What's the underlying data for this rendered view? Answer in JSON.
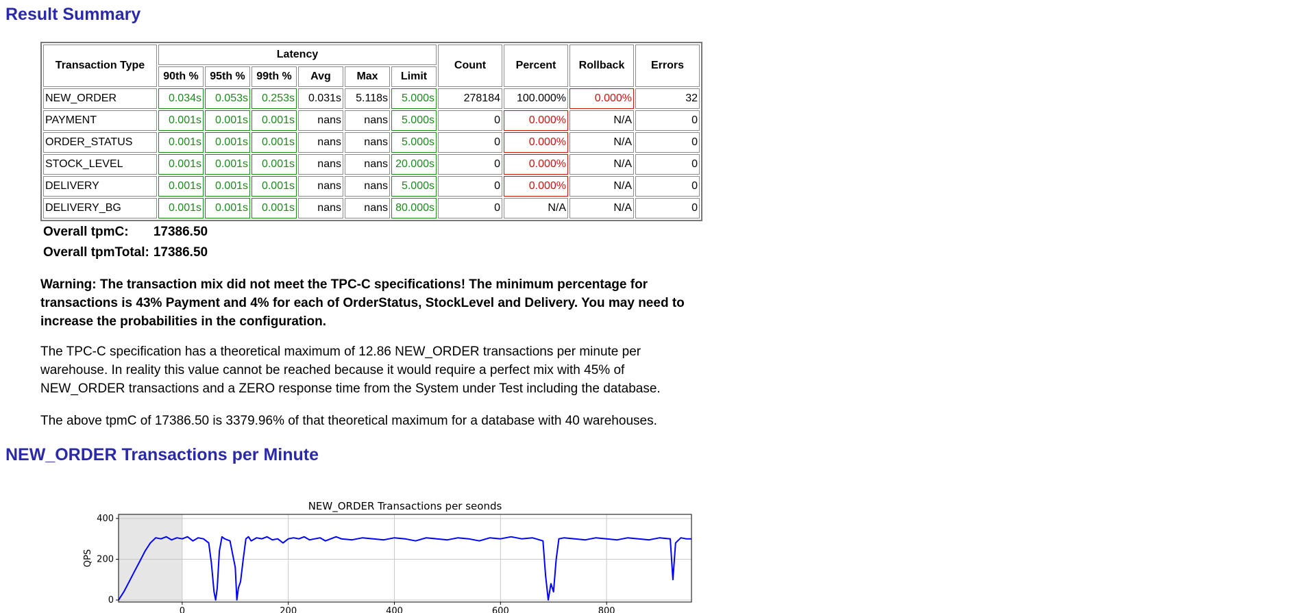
{
  "headings": {
    "summary": "Result Summary",
    "new_order": "NEW_ORDER Transactions per Minute"
  },
  "table": {
    "col_transaction_type": "Transaction Type",
    "col_latency": "Latency",
    "latency_cols": [
      "90th %",
      "95th %",
      "99th %",
      "Avg",
      "Max",
      "Limit"
    ],
    "col_count": "Count",
    "col_percent": "Percent",
    "col_rollback": "Rollback",
    "col_errors": "Errors",
    "rows": [
      {
        "name": "NEW_ORDER",
        "p90": "0.034s",
        "p95": "0.053s",
        "p99": "0.253s",
        "avg": "0.031s",
        "max": "5.118s",
        "limit": "5.000s",
        "count": "278184",
        "percent": "100.000%",
        "rollback": "0.000%",
        "errors": "32"
      },
      {
        "name": "PAYMENT",
        "p90": "0.001s",
        "p95": "0.001s",
        "p99": "0.001s",
        "avg": "nans",
        "max": "nans",
        "limit": "5.000s",
        "count": "0",
        "percent": "0.000%",
        "rollback": "N/A",
        "errors": "0"
      },
      {
        "name": "ORDER_STATUS",
        "p90": "0.001s",
        "p95": "0.001s",
        "p99": "0.001s",
        "avg": "nans",
        "max": "nans",
        "limit": "5.000s",
        "count": "0",
        "percent": "0.000%",
        "rollback": "N/A",
        "errors": "0"
      },
      {
        "name": "STOCK_LEVEL",
        "p90": "0.001s",
        "p95": "0.001s",
        "p99": "0.001s",
        "avg": "nans",
        "max": "nans",
        "limit": "20.000s",
        "count": "0",
        "percent": "0.000%",
        "rollback": "N/A",
        "errors": "0"
      },
      {
        "name": "DELIVERY",
        "p90": "0.001s",
        "p95": "0.001s",
        "p99": "0.001s",
        "avg": "nans",
        "max": "nans",
        "limit": "5.000s",
        "count": "0",
        "percent": "0.000%",
        "rollback": "N/A",
        "errors": "0"
      },
      {
        "name": "DELIVERY_BG",
        "p90": "0.001s",
        "p95": "0.001s",
        "p99": "0.001s",
        "avg": "nans",
        "max": "nans",
        "limit": "80.000s",
        "count": "0",
        "percent": "N/A",
        "rollback": "N/A",
        "errors": "0"
      }
    ]
  },
  "totals": {
    "tpmc_label": "Overall tpmC:",
    "tpmc_value": "17386.50",
    "tpmtotal_label": "Overall tpmTotal:",
    "tpmtotal_value": "17386.50"
  },
  "warning": "Warning: The transaction mix did not meet the TPC-C specifications! The minimum percentage for transactions is 43% Payment and 4% for each of OrderStatus, StockLevel and Delivery. You may need to increase the probabilities in the configuration.",
  "spec_text": "The TPC-C specification has a theoretical maximum of 12.86 NEW_ORDER transactions per minute per warehouse. In reality this value cannot be reached because it would require a perfect mix with 45% of NEW_ORDER transactions and a ZERO response time from the System under Test including the database.",
  "ratio_text": "The above tpmC of 17386.50 is 3379.96% of that theoretical maximum for a database with 40 warehouses.",
  "colors": {
    "heading": "#2a2aa8",
    "ok": "#1a8a1a",
    "bad": "#cc1111",
    "series": "#0000ff",
    "rampup_shade": "#e6e6e6"
  },
  "chart_data": {
    "type": "line",
    "title": "NEW_ORDER Transactions per seonds",
    "xlabel": "",
    "ylabel": "QPS",
    "xlim": [
      -120,
      960
    ],
    "ylim": [
      -10,
      420
    ],
    "xticks": [
      0,
      200,
      400,
      600,
      800
    ],
    "yticks": [
      0,
      200,
      400
    ],
    "grid": true,
    "shaded_region": [
      -120,
      0
    ],
    "series": [
      {
        "name": "",
        "x": [
          -120,
          -110,
          -100,
          -90,
          -80,
          -70,
          -60,
          -50,
          -40,
          -30,
          -20,
          -10,
          0,
          10,
          20,
          30,
          40,
          50,
          55,
          60,
          63,
          66,
          70,
          75,
          80,
          90,
          100,
          103,
          106,
          110,
          115,
          120,
          125,
          130,
          140,
          150,
          160,
          170,
          180,
          190,
          200,
          210,
          220,
          230,
          240,
          250,
          260,
          270,
          280,
          290,
          300,
          320,
          340,
          360,
          380,
          400,
          420,
          440,
          460,
          480,
          500,
          520,
          540,
          560,
          580,
          600,
          620,
          640,
          660,
          680,
          685,
          690,
          695,
          700,
          705,
          710,
          720,
          740,
          760,
          780,
          800,
          820,
          840,
          860,
          880,
          900,
          920,
          925,
          930,
          940,
          950,
          960
        ],
        "y": [
          0,
          40,
          90,
          140,
          190,
          240,
          280,
          305,
          300,
          310,
          295,
          305,
          300,
          310,
          290,
          305,
          300,
          280,
          180,
          40,
          0,
          60,
          240,
          310,
          300,
          290,
          160,
          0,
          60,
          90,
          200,
          300,
          310,
          290,
          305,
          300,
          310,
          295,
          300,
          280,
          300,
          305,
          300,
          310,
          295,
          300,
          305,
          290,
          300,
          310,
          300,
          295,
          305,
          300,
          295,
          305,
          300,
          290,
          305,
          300,
          295,
          305,
          300,
          290,
          305,
          300,
          310,
          300,
          305,
          290,
          120,
          0,
          80,
          40,
          200,
          300,
          305,
          300,
          295,
          305,
          300,
          295,
          305,
          300,
          295,
          305,
          300,
          100,
          280,
          305,
          300,
          300
        ]
      }
    ]
  }
}
